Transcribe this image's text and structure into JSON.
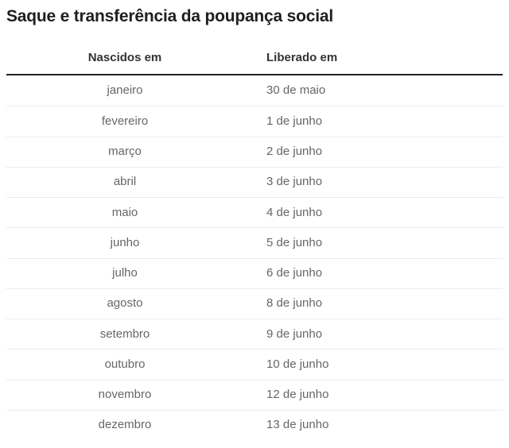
{
  "title": "Saque e transferência da poupança social",
  "table": {
    "columns": [
      {
        "label": "Nascidos em"
      },
      {
        "label": "Liberado em"
      }
    ],
    "rows": [
      {
        "born": "janeiro",
        "released": "30 de maio"
      },
      {
        "born": "fevereiro",
        "released": "1 de junho"
      },
      {
        "born": "março",
        "released": "2 de junho"
      },
      {
        "born": "abril",
        "released": "3 de junho"
      },
      {
        "born": "maio",
        "released": "4 de junho"
      },
      {
        "born": "junho",
        "released": "5 de junho"
      },
      {
        "born": "julho",
        "released": "6 de junho"
      },
      {
        "born": "agosto",
        "released": "8 de junho"
      },
      {
        "born": "setembro",
        "released": "9 de junho"
      },
      {
        "born": "outubro",
        "released": "10 de junho"
      },
      {
        "born": "novembro",
        "released": "12 de junho"
      },
      {
        "born": "dezembro",
        "released": "13 de junho"
      }
    ]
  },
  "chart_data": {
    "type": "table",
    "title": "Saque e transferência da poupança social",
    "columns": [
      "Nascidos em",
      "Liberado em"
    ],
    "rows": [
      [
        "janeiro",
        "30 de maio"
      ],
      [
        "fevereiro",
        "1 de junho"
      ],
      [
        "março",
        "2 de junho"
      ],
      [
        "abril",
        "3 de junho"
      ],
      [
        "maio",
        "4 de junho"
      ],
      [
        "junho",
        "5 de junho"
      ],
      [
        "julho",
        "6 de junho"
      ],
      [
        "agosto",
        "8 de junho"
      ],
      [
        "setembro",
        "9 de junho"
      ],
      [
        "outubro",
        "10 de junho"
      ],
      [
        "novembro",
        "12 de junho"
      ],
      [
        "dezembro",
        "13 de junho"
      ]
    ]
  },
  "colors": {
    "background": "#ffffff",
    "title_text": "#1f1f1f",
    "header_text": "#333333",
    "cell_text": "#666666",
    "header_rule": "#222222",
    "row_divider": "#ececec"
  }
}
